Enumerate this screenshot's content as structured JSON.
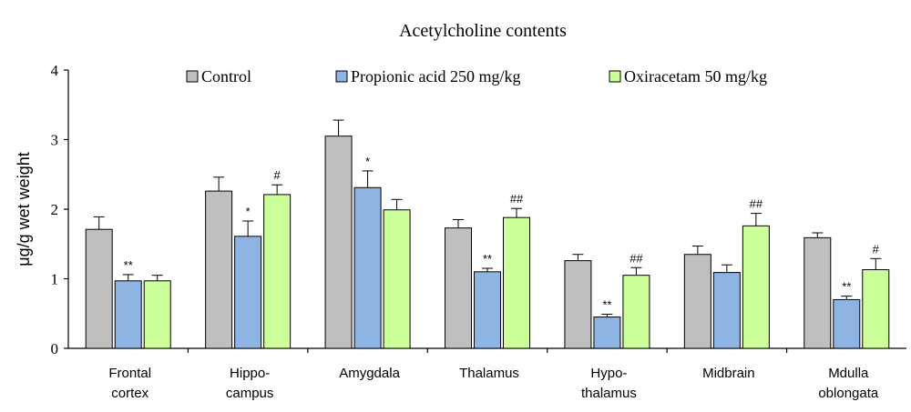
{
  "chart_data": {
    "type": "bar",
    "title": "Acetylcholine contents",
    "xlabel": "",
    "ylabel": "μg/g wet weight",
    "ylim": [
      0,
      4
    ],
    "yticks": [
      "0",
      "1",
      "2",
      "3",
      "4"
    ],
    "grid": false,
    "legend_position": "top",
    "categories": [
      [
        "Frontal",
        "cortex"
      ],
      [
        "Hippo-",
        "campus"
      ],
      [
        "Amygdala"
      ],
      [
        "Thalamus"
      ],
      [
        "Hypo-",
        "thalamus"
      ],
      [
        "Midbrain"
      ],
      [
        "Mdulla",
        "oblongata"
      ]
    ],
    "series": [
      {
        "name": "Control",
        "color": "#bfbfbf",
        "values": [
          1.71,
          2.26,
          3.05,
          1.73,
          1.26,
          1.35,
          1.59
        ],
        "errors": [
          0.18,
          0.2,
          0.23,
          0.12,
          0.09,
          0.12,
          0.07
        ],
        "annotations": [
          "",
          "",
          "",
          "",
          "",
          "",
          ""
        ]
      },
      {
        "name": "Propionic acid 250 mg/kg",
        "color": "#8db4e2",
        "values": [
          0.97,
          1.61,
          2.31,
          1.1,
          0.45,
          1.09,
          0.7
        ],
        "errors": [
          0.09,
          0.22,
          0.24,
          0.05,
          0.04,
          0.11,
          0.05
        ],
        "annotations": [
          "**",
          "*",
          "*",
          "**",
          "**",
          "",
          "**"
        ]
      },
      {
        "name": "Oxiracetam 50 mg/kg",
        "color": "#ccff99",
        "values": [
          0.97,
          2.21,
          1.99,
          1.88,
          1.05,
          1.76,
          1.13
        ],
        "errors": [
          0.08,
          0.14,
          0.15,
          0.13,
          0.11,
          0.18,
          0.16
        ],
        "annotations": [
          "",
          "#",
          "",
          "##",
          "##",
          "##",
          "#"
        ]
      }
    ]
  }
}
